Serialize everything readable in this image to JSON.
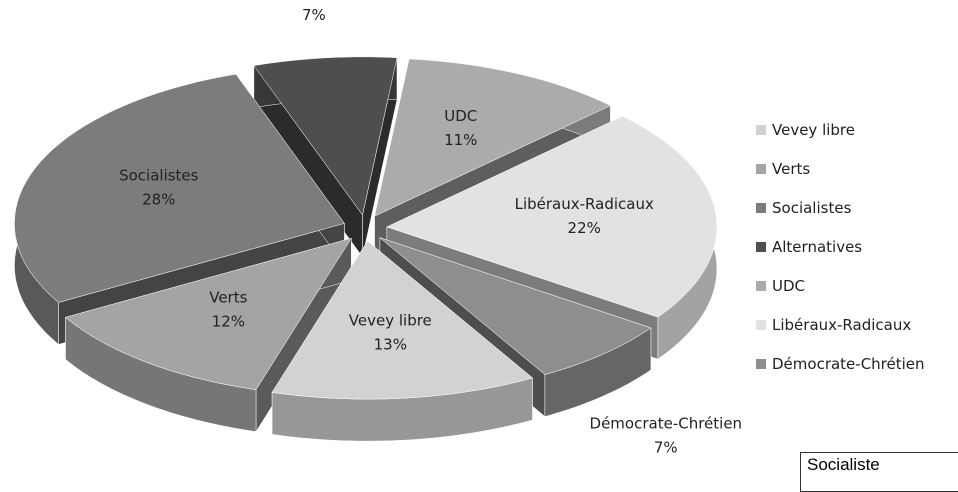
{
  "chart_data": {
    "type": "pie3d",
    "categories": [
      "Vevey libre",
      "Verts",
      "Socialistes",
      "Alternatives",
      "UDC",
      "Libéraux-Radicaux",
      "Démocrate-Chrétien"
    ],
    "values": [
      13,
      12,
      28,
      7,
      11,
      22,
      7
    ],
    "value_labels": [
      "13%",
      "12%",
      "28%",
      "7%",
      "11%",
      "22%",
      "7%"
    ],
    "colors": [
      "#d2d2d2",
      "#a4a4a4",
      "#7c7c7c",
      "#4e4e4e",
      "#ababab",
      "#e2e2e2",
      "#8e8e8e"
    ],
    "legend": "right"
  },
  "table": {
    "cells": [
      "Socialiste"
    ]
  }
}
